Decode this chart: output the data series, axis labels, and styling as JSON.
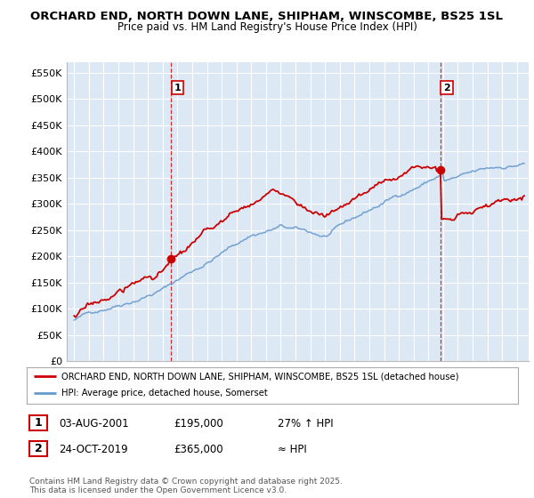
{
  "title": "ORCHARD END, NORTH DOWN LANE, SHIPHAM, WINSCOMBE, BS25 1SL",
  "subtitle": "Price paid vs. HM Land Registry's House Price Index (HPI)",
  "ylim": [
    0,
    570000
  ],
  "yticks": [
    0,
    50000,
    100000,
    150000,
    200000,
    250000,
    300000,
    350000,
    400000,
    450000,
    500000,
    550000
  ],
  "ytick_labels": [
    "£0",
    "£50K",
    "£100K",
    "£150K",
    "£200K",
    "£250K",
    "£300K",
    "£350K",
    "£400K",
    "£450K",
    "£500K",
    "£550K"
  ],
  "sale1_date_num": 2001.58,
  "sale1_price": 195000,
  "sale1_label": "1",
  "sale2_date_num": 2019.82,
  "sale2_price": 365000,
  "sale2_label": "2",
  "line_color_property": "#cc0000",
  "line_color_hpi": "#6699cc",
  "chart_bg": "#dde8f5",
  "legend_property": "ORCHARD END, NORTH DOWN LANE, SHIPHAM, WINSCOMBE, BS25 1SL (detached house)",
  "legend_hpi": "HPI: Average price, detached house, Somerset",
  "footer1": "Contains HM Land Registry data © Crown copyright and database right 2025.",
  "footer2": "This data is licensed under the Open Government Licence v3.0.",
  "table_row1_num": "1",
  "table_row1_date": "03-AUG-2001",
  "table_row1_price": "£195,000",
  "table_row1_info": "27% ↑ HPI",
  "table_row2_num": "2",
  "table_row2_date": "24-OCT-2019",
  "table_row2_price": "£365,000",
  "table_row2_info": "≈ HPI",
  "background_color": "#ffffff",
  "grid_color": "#c8d8e8"
}
